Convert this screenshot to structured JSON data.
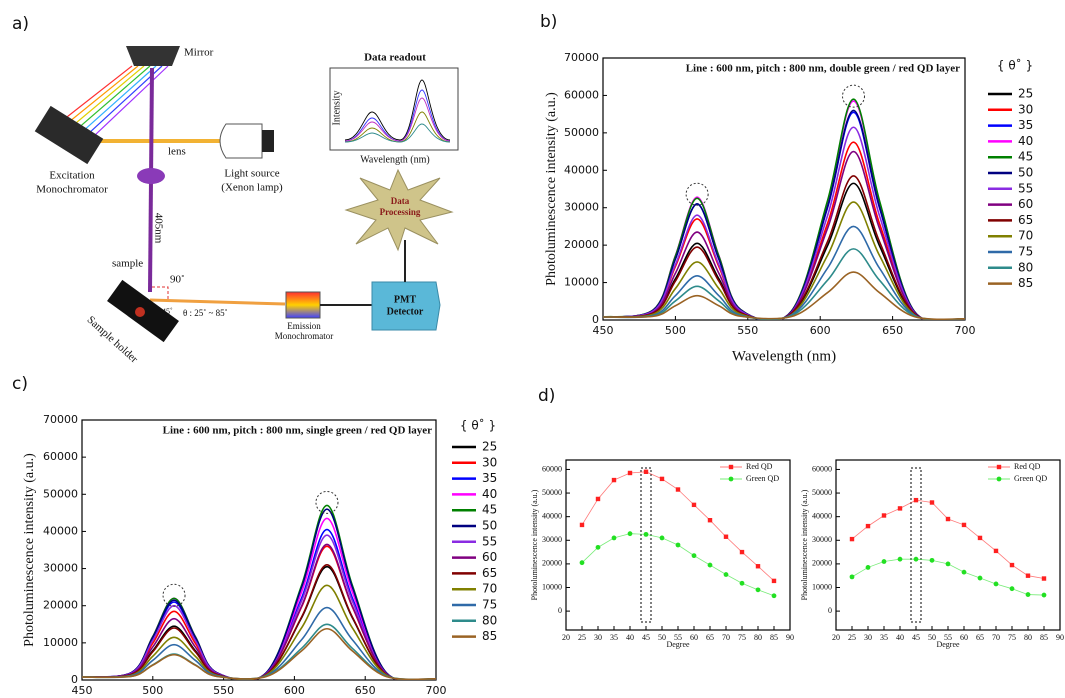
{
  "panel_labels": [
    "a)",
    "b)",
    "c)",
    "d)"
  ],
  "diagram": {
    "mirror": "Mirror",
    "excitation_monochromator": [
      "Excitation",
      "Monochromator"
    ],
    "light_source": [
      "Light source",
      "(Xenon lamp)"
    ],
    "lens": "lens",
    "wavelength": "405nm",
    "sample": "sample",
    "right_angle": "90˚",
    "incidence": "45˚",
    "theta_range": "θ : 25˚ ~ 85˚",
    "sample_holder": "Sample holder",
    "emission_monochromator": [
      "Emission",
      "Monochromator"
    ],
    "pmt_detector": [
      "PMT",
      "Detector"
    ],
    "data_processing": [
      "Data",
      "Processing"
    ],
    "readout": {
      "title": "Data readout",
      "ylabel": "Intensity",
      "xlabel": "Wavelength (nm)"
    }
  },
  "chart_data": [
    {
      "type": "line",
      "smooth": true,
      "title": "Line : 600 nm, pitch : 800 nm, double green / red QD layer",
      "xlabel": "Wavelength (nm)",
      "ylabel": "Photoluminescence intensity (a.u.)",
      "legend_title": "{ θ˚ }",
      "xlim": [
        450,
        700
      ],
      "xticks": [
        450,
        500,
        550,
        600,
        650,
        700
      ],
      "ylim": [
        0,
        70000
      ],
      "yticks": [
        0,
        10000,
        20000,
        30000,
        40000,
        50000,
        60000,
        70000
      ],
      "peak_circles": [
        515,
        623
      ],
      "x": [
        450,
        485,
        500,
        515,
        530,
        545,
        580,
        605,
        623,
        641,
        665,
        700
      ],
      "series": [
        {
          "name": "25",
          "color": "#000000",
          "values": [
            800,
            1900,
            11000,
            20500,
            11000,
            1900,
            1600,
            19800,
            36500,
            19800,
            1600,
            300
          ]
        },
        {
          "name": "30",
          "color": "#ff0000",
          "values": [
            800,
            2400,
            14300,
            27000,
            14300,
            2400,
            1900,
            25700,
            47500,
            25700,
            1900,
            300
          ]
        },
        {
          "name": "35",
          "color": "#0000ff",
          "values": [
            800,
            2700,
            16300,
            31000,
            16300,
            2700,
            2200,
            29900,
            55500,
            29900,
            2200,
            300
          ]
        },
        {
          "name": "40",
          "color": "#ff00ff",
          "values": [
            800,
            2800,
            17200,
            32800,
            17200,
            2800,
            2300,
            31500,
            58500,
            31500,
            2300,
            300
          ]
        },
        {
          "name": "45",
          "color": "#008000",
          "values": [
            800,
            2800,
            17100,
            32500,
            17100,
            2800,
            2300,
            31800,
            59000,
            31800,
            2300,
            300
          ]
        },
        {
          "name": "50",
          "color": "#000080",
          "values": [
            800,
            2700,
            16300,
            31000,
            16300,
            2700,
            2200,
            30200,
            56000,
            30200,
            2200,
            300
          ]
        },
        {
          "name": "55",
          "color": "#8a2be2",
          "values": [
            800,
            2500,
            14800,
            28000,
            14800,
            2500,
            2000,
            27800,
            51500,
            27800,
            2000,
            300
          ]
        },
        {
          "name": "60",
          "color": "#800080",
          "values": [
            800,
            2100,
            12500,
            23500,
            12500,
            2100,
            1900,
            24400,
            45000,
            24400,
            1900,
            300
          ]
        },
        {
          "name": "65",
          "color": "#800000",
          "values": [
            800,
            1900,
            10400,
            19500,
            10400,
            1900,
            1700,
            20900,
            38500,
            20900,
            1700,
            300
          ]
        },
        {
          "name": "70",
          "color": "#808000",
          "values": [
            800,
            1600,
            8400,
            15500,
            8400,
            1600,
            1400,
            17200,
            31500,
            17200,
            1400,
            300
          ]
        },
        {
          "name": "75",
          "color": "#2f6aa8",
          "values": [
            800,
            1300,
            6500,
            11800,
            6500,
            1300,
            1300,
            13800,
            25000,
            13800,
            1300,
            300
          ]
        },
        {
          "name": "80",
          "color": "#2e8b8b",
          "values": [
            800,
            1100,
            5100,
            9000,
            5100,
            1100,
            1100,
            10600,
            19000,
            10600,
            1100,
            300
          ]
        },
        {
          "name": "85",
          "color": "#9a6324",
          "values": [
            800,
            1000,
            3800,
            6500,
            3800,
            1000,
            900,
            7300,
            12800,
            7300,
            900,
            300
          ]
        }
      ]
    },
    {
      "type": "line",
      "smooth": true,
      "title": "Line : 600 nm, pitch : 800 nm, single green / red QD layer",
      "ylabel": "Photoluminescence intensity (a.u.)",
      "legend_title": "{ θ˚ }",
      "xlim": [
        450,
        700
      ],
      "xticks": [
        450,
        500,
        550,
        600,
        650,
        700
      ],
      "ylim": [
        0,
        70000
      ],
      "yticks": [
        0,
        10000,
        20000,
        30000,
        40000,
        50000,
        60000,
        70000
      ],
      "peak_circles": [
        515,
        623
      ],
      "x": [
        450,
        485,
        500,
        515,
        530,
        545,
        580,
        605,
        623,
        641,
        665,
        700
      ],
      "series": [
        {
          "name": "25",
          "color": "#000000",
          "values": [
            800,
            1500,
            7900,
            14500,
            7900,
            1500,
            1400,
            16700,
            30500,
            16700,
            1400,
            300
          ]
        },
        {
          "name": "30",
          "color": "#ff0000",
          "values": [
            800,
            1800,
            9900,
            18500,
            9900,
            1800,
            1600,
            19600,
            36000,
            19600,
            1600,
            300
          ]
        },
        {
          "name": "35",
          "color": "#0000ff",
          "values": [
            800,
            2000,
            11200,
            21000,
            11200,
            2000,
            1700,
            22000,
            40500,
            22000,
            1700,
            300
          ]
        },
        {
          "name": "40",
          "color": "#ff00ff",
          "values": [
            800,
            2000,
            11700,
            22000,
            11700,
            2000,
            1800,
            23600,
            43500,
            23600,
            1800,
            300
          ]
        },
        {
          "name": "45",
          "color": "#008000",
          "values": [
            800,
            2000,
            11700,
            22000,
            11700,
            2000,
            1900,
            25400,
            47000,
            25400,
            1900,
            300
          ]
        },
        {
          "name": "50",
          "color": "#000080",
          "values": [
            800,
            2000,
            11500,
            21500,
            11500,
            2000,
            1900,
            24900,
            46000,
            24900,
            1900,
            300
          ]
        },
        {
          "name": "55",
          "color": "#8a2be2",
          "values": [
            800,
            1900,
            10700,
            20000,
            10700,
            1900,
            1700,
            21200,
            39000,
            21200,
            1700,
            300
          ]
        },
        {
          "name": "60",
          "color": "#800080",
          "values": [
            800,
            1700,
            8900,
            16500,
            8900,
            1700,
            1600,
            19800,
            36500,
            19800,
            1600,
            300
          ]
        },
        {
          "name": "65",
          "color": "#800000",
          "values": [
            800,
            1500,
            7600,
            14000,
            7600,
            1500,
            1400,
            16900,
            31000,
            16900,
            1400,
            300
          ]
        },
        {
          "name": "70",
          "color": "#808000",
          "values": [
            800,
            1300,
            6400,
            11500,
            6400,
            1300,
            1300,
            14000,
            25500,
            14000,
            1300,
            300
          ]
        },
        {
          "name": "75",
          "color": "#2f6aa8",
          "values": [
            800,
            1200,
            5300,
            9500,
            5300,
            1200,
            1100,
            10800,
            19500,
            10800,
            1100,
            300
          ]
        },
        {
          "name": "80",
          "color": "#2e8b8b",
          "values": [
            800,
            1000,
            4100,
            7000,
            4100,
            1000,
            1000,
            8500,
            15000,
            8500,
            1000,
            300
          ]
        },
        {
          "name": "85",
          "color": "#9a6324",
          "values": [
            800,
            1000,
            4000,
            6800,
            4000,
            1000,
            900,
            7800,
            13800,
            7800,
            900,
            300
          ]
        }
      ]
    },
    {
      "type": "line",
      "xlabel": "Degree",
      "ylabel": "Photoluminescence intensity (a.u.)",
      "legend": "upper right",
      "highlight": 45,
      "xlim": [
        20,
        90
      ],
      "xticks": [
        20,
        25,
        30,
        35,
        40,
        45,
        50,
        55,
        60,
        65,
        70,
        75,
        80,
        85,
        90
      ],
      "ylim": [
        -8000,
        64000
      ],
      "yticks": [
        0,
        10000,
        20000,
        30000,
        40000,
        50000,
        60000
      ],
      "x": [
        25,
        30,
        35,
        40,
        45,
        50,
        55,
        60,
        65,
        70,
        75,
        80,
        85
      ],
      "series": [
        {
          "name": "Red QD",
          "color": "#ff2020",
          "marker": "square",
          "values": [
            36500,
            47500,
            55500,
            58500,
            59000,
            56000,
            51500,
            45000,
            38500,
            31500,
            25000,
            19000,
            12800
          ]
        },
        {
          "name": "Green QD",
          "color": "#22e022",
          "marker": "circle",
          "values": [
            20500,
            27000,
            31000,
            32800,
            32500,
            31000,
            28000,
            23500,
            19500,
            15500,
            11800,
            9000,
            6500
          ]
        }
      ]
    },
    {
      "type": "line",
      "xlabel": "Degree",
      "ylabel": "Photoluminescence intensity (a.u.)",
      "legend": "upper right",
      "highlight": 45,
      "xlim": [
        20,
        90
      ],
      "xticks": [
        20,
        25,
        30,
        35,
        40,
        45,
        50,
        55,
        60,
        65,
        70,
        75,
        80,
        85,
        90
      ],
      "ylim": [
        -8000,
        64000
      ],
      "yticks": [
        0,
        10000,
        20000,
        30000,
        40000,
        50000,
        60000
      ],
      "x": [
        25,
        30,
        35,
        40,
        45,
        50,
        55,
        60,
        65,
        70,
        75,
        80,
        85
      ],
      "series": [
        {
          "name": "Red QD",
          "color": "#ff2020",
          "marker": "square",
          "values": [
            30500,
            36000,
            40500,
            43500,
            47000,
            46000,
            39000,
            36500,
            31000,
            25500,
            19500,
            15000,
            13800
          ]
        },
        {
          "name": "Green QD",
          "color": "#22e022",
          "marker": "circle",
          "values": [
            14500,
            18500,
            21000,
            22000,
            22000,
            21500,
            20000,
            16500,
            14000,
            11500,
            9500,
            7000,
            6800
          ]
        }
      ]
    }
  ]
}
